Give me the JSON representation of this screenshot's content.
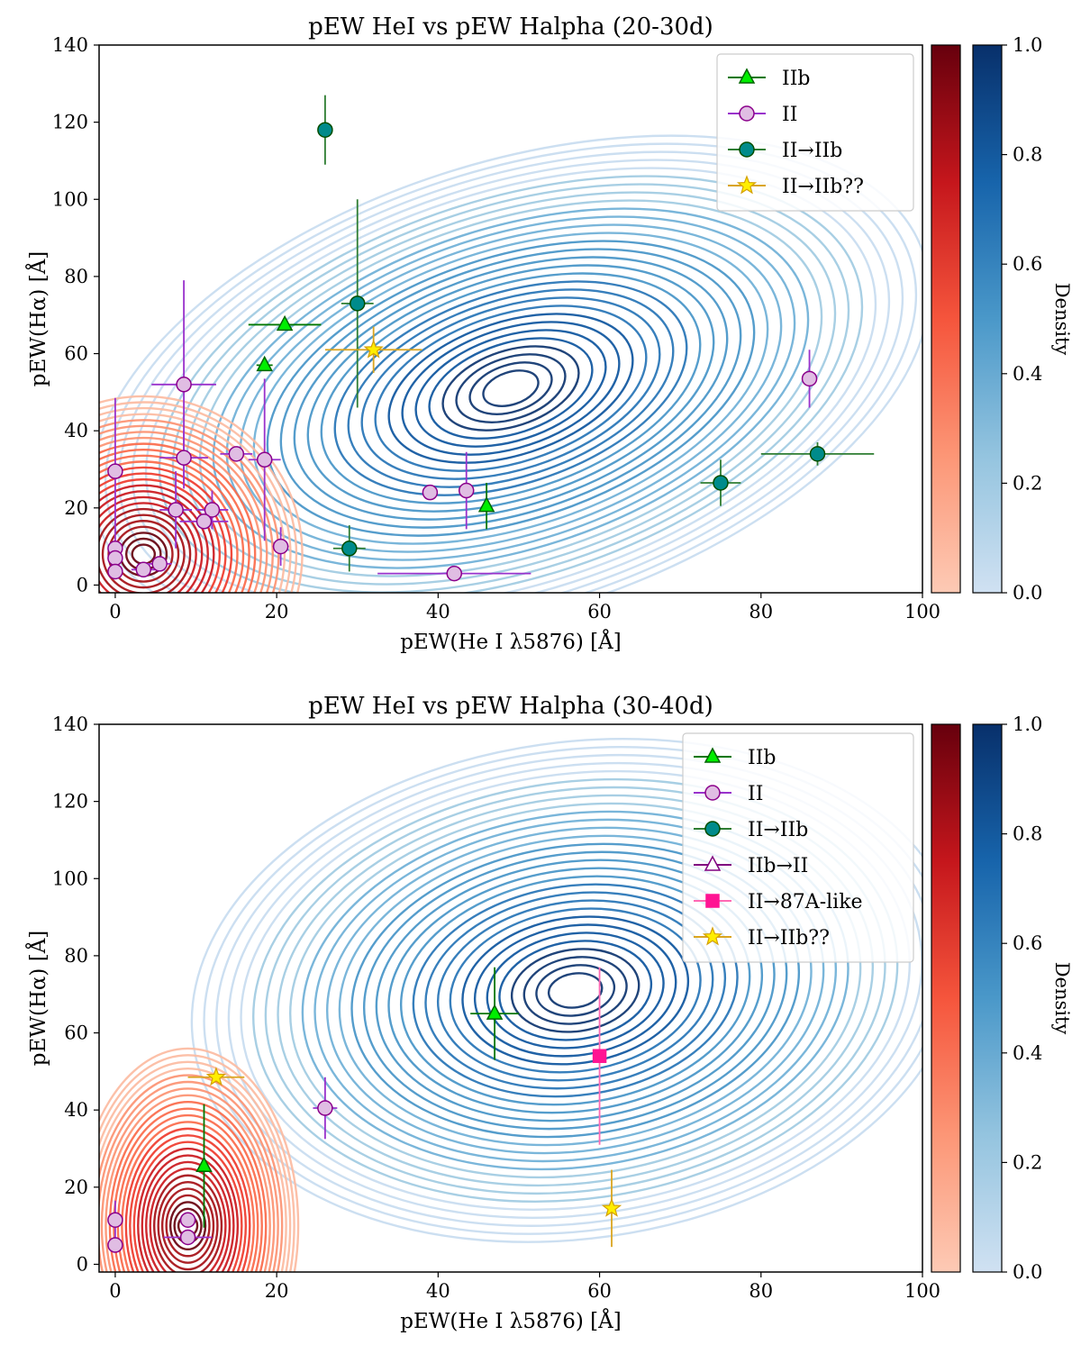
{
  "chart_data": [
    {
      "type": "scatter",
      "title": "pEW HeI vs pEW Halpha (20-30d)",
      "xlabel": "pEW(He I λ5876) [Å]",
      "ylabel": "pEW(Hα) [Å]",
      "xlim": [
        -2,
        100
      ],
      "ylim": [
        -2,
        140
      ],
      "xticks": [
        "0",
        "20",
        "40",
        "60",
        "80",
        "100"
      ],
      "yticks": [
        "0",
        "20",
        "40",
        "60",
        "80",
        "100",
        "120",
        "140"
      ],
      "colorbar_label": "Density",
      "colorbar_ticks": [
        "0.0",
        "0.2",
        "0.4",
        "0.6",
        "0.8",
        "1.0"
      ],
      "legend_position": "top-right",
      "density": {
        "blue": {
          "peak_x": 49,
          "peak_y": 51
        },
        "red": {
          "peak_x": 3.5,
          "peak_y": 8
        }
      },
      "series": [
        {
          "name": "IIb",
          "marker": "triangle",
          "color": "#00ee00",
          "edge": "#006400",
          "err": "#007700",
          "points": [
            {
              "x": 18.5,
              "y": 57,
              "xerr": 1,
              "yerr": 0
            },
            {
              "x": 21,
              "y": 67.5,
              "xerr": 4.5,
              "yerr": 0
            },
            {
              "x": 46,
              "y": 20.5,
              "xerr": 0,
              "yerr": 6
            }
          ]
        },
        {
          "name": "II",
          "marker": "circle",
          "color": "#e0bde3",
          "edge": "#8b008b",
          "err": "#9932cc",
          "points": [
            {
              "x": 0,
              "y": 29.5,
              "xerr": 0,
              "yerr": 19
            },
            {
              "x": 0,
              "y": 9.5,
              "xerr": 0,
              "yerr": 0
            },
            {
              "x": 0,
              "y": 7,
              "xerr": 0,
              "yerr": 0
            },
            {
              "x": 0,
              "y": 3.5,
              "xerr": 0,
              "yerr": 0
            },
            {
              "x": 3.5,
              "y": 4,
              "xerr": 1.5,
              "yerr": 0
            },
            {
              "x": 5.5,
              "y": 5.5,
              "xerr": 1.5,
              "yerr": 0
            },
            {
              "x": 8.5,
              "y": 52,
              "xerr": 4,
              "yerr": 27
            },
            {
              "x": 8.5,
              "y": 33,
              "xerr": 3,
              "yerr": 7
            },
            {
              "x": 7.5,
              "y": 19.5,
              "xerr": 2,
              "yerr": 10
            },
            {
              "x": 12,
              "y": 19.5,
              "xerr": 2,
              "yerr": 5
            },
            {
              "x": 11,
              "y": 16.5,
              "xerr": 3,
              "yerr": 0
            },
            {
              "x": 15,
              "y": 34,
              "xerr": 2,
              "yerr": 0
            },
            {
              "x": 18.5,
              "y": 32.5,
              "xerr": 2,
              "yerr": 21
            },
            {
              "x": 20.5,
              "y": 10,
              "xerr": 1,
              "yerr": 5
            },
            {
              "x": 39,
              "y": 24,
              "xerr": 0,
              "yerr": 0
            },
            {
              "x": 43.5,
              "y": 24.5,
              "xerr": 0,
              "yerr": 10
            },
            {
              "x": 42,
              "y": 3,
              "xerr": 9.5,
              "yerr": 0
            },
            {
              "x": 86,
              "y": 53.5,
              "xerr": 0,
              "yerr": 7.5
            }
          ]
        },
        {
          "name": "II→IIb",
          "marker": "circle",
          "color": "#008b8b",
          "edge": "#004d00",
          "err": "#2e7d32",
          "points": [
            {
              "x": 26,
              "y": 118,
              "xerr": 0,
              "yerr": 9
            },
            {
              "x": 30,
              "y": 73,
              "xerr": 2,
              "yerr": 27
            },
            {
              "x": 29,
              "y": 9.5,
              "xerr": 2,
              "yerr": 6
            },
            {
              "x": 75,
              "y": 26.5,
              "xerr": 2.5,
              "yerr": 6
            },
            {
              "x": 87,
              "y": 34,
              "xerr": 7,
              "yerr": 3
            }
          ]
        },
        {
          "name": "II→IIb??",
          "marker": "star",
          "color": "#ffee00",
          "edge": "#d4a000",
          "err": "#daa520",
          "points": [
            {
              "x": 32,
              "y": 61,
              "xerr": 6,
              "yerr": 6
            }
          ]
        }
      ]
    },
    {
      "type": "scatter",
      "title": "pEW HeI vs pEW Halpha (30-40d)",
      "xlabel": "pEW(He I λ5876) [Å]",
      "ylabel": "pEW(Hα) [Å]",
      "xlim": [
        -2,
        100
      ],
      "ylim": [
        -2,
        140
      ],
      "xticks": [
        "0",
        "20",
        "40",
        "60",
        "80",
        "100"
      ],
      "yticks": [
        "0",
        "20",
        "40",
        "60",
        "80",
        "100",
        "120",
        "140"
      ],
      "colorbar_label": "Density",
      "colorbar_ticks": [
        "0.0",
        "0.2",
        "0.4",
        "0.6",
        "0.8",
        "1.0"
      ],
      "legend_position": "top-right",
      "density": {
        "blue": {
          "peak_x": 57,
          "peak_y": 71
        },
        "red": {
          "peak_x": 9,
          "peak_y": 10
        }
      },
      "series": [
        {
          "name": "IIb",
          "marker": "triangle",
          "color": "#00ee00",
          "edge": "#006400",
          "err": "#007700",
          "points": [
            {
              "x": 47,
              "y": 65,
              "xerr": 3,
              "yerr": 12
            },
            {
              "x": 11,
              "y": 25.5,
              "xerr": 0,
              "yerr": 16
            }
          ]
        },
        {
          "name": "II",
          "marker": "circle",
          "color": "#e0bde3",
          "edge": "#8b008b",
          "err": "#9932cc",
          "points": [
            {
              "x": 0,
              "y": 11.5,
              "xerr": 0,
              "yerr": 5
            },
            {
              "x": 0,
              "y": 5,
              "xerr": 0,
              "yerr": 0
            },
            {
              "x": 9,
              "y": 11.5,
              "xerr": 1,
              "yerr": 0
            },
            {
              "x": 9,
              "y": 7,
              "xerr": 3,
              "yerr": 0
            },
            {
              "x": 26,
              "y": 40.5,
              "xerr": 1.5,
              "yerr": 8
            }
          ]
        },
        {
          "name": "II→IIb",
          "marker": "circle",
          "color": "#008b8b",
          "edge": "#004d00",
          "err": "#2e7d32",
          "points": []
        },
        {
          "name": "IIb→II",
          "marker": "triangle-open",
          "color": "#ffffff",
          "edge": "#800080",
          "err": "#800080",
          "points": []
        },
        {
          "name": "II→87A-like",
          "marker": "square",
          "color": "#ff1493",
          "edge": "#ff1493",
          "err": "#ff69b4",
          "points": [
            {
              "x": 60,
              "y": 54,
              "xerr": 0,
              "yerr": 23
            }
          ]
        },
        {
          "name": "II→IIb??",
          "marker": "star",
          "color": "#ffee00",
          "edge": "#d4a000",
          "err": "#daa520",
          "points": [
            {
              "x": 12.5,
              "y": 48.5,
              "xerr": 3.5,
              "yerr": 0
            },
            {
              "x": 61.5,
              "y": 14.5,
              "xerr": 0,
              "yerr": 10
            }
          ]
        }
      ]
    }
  ]
}
